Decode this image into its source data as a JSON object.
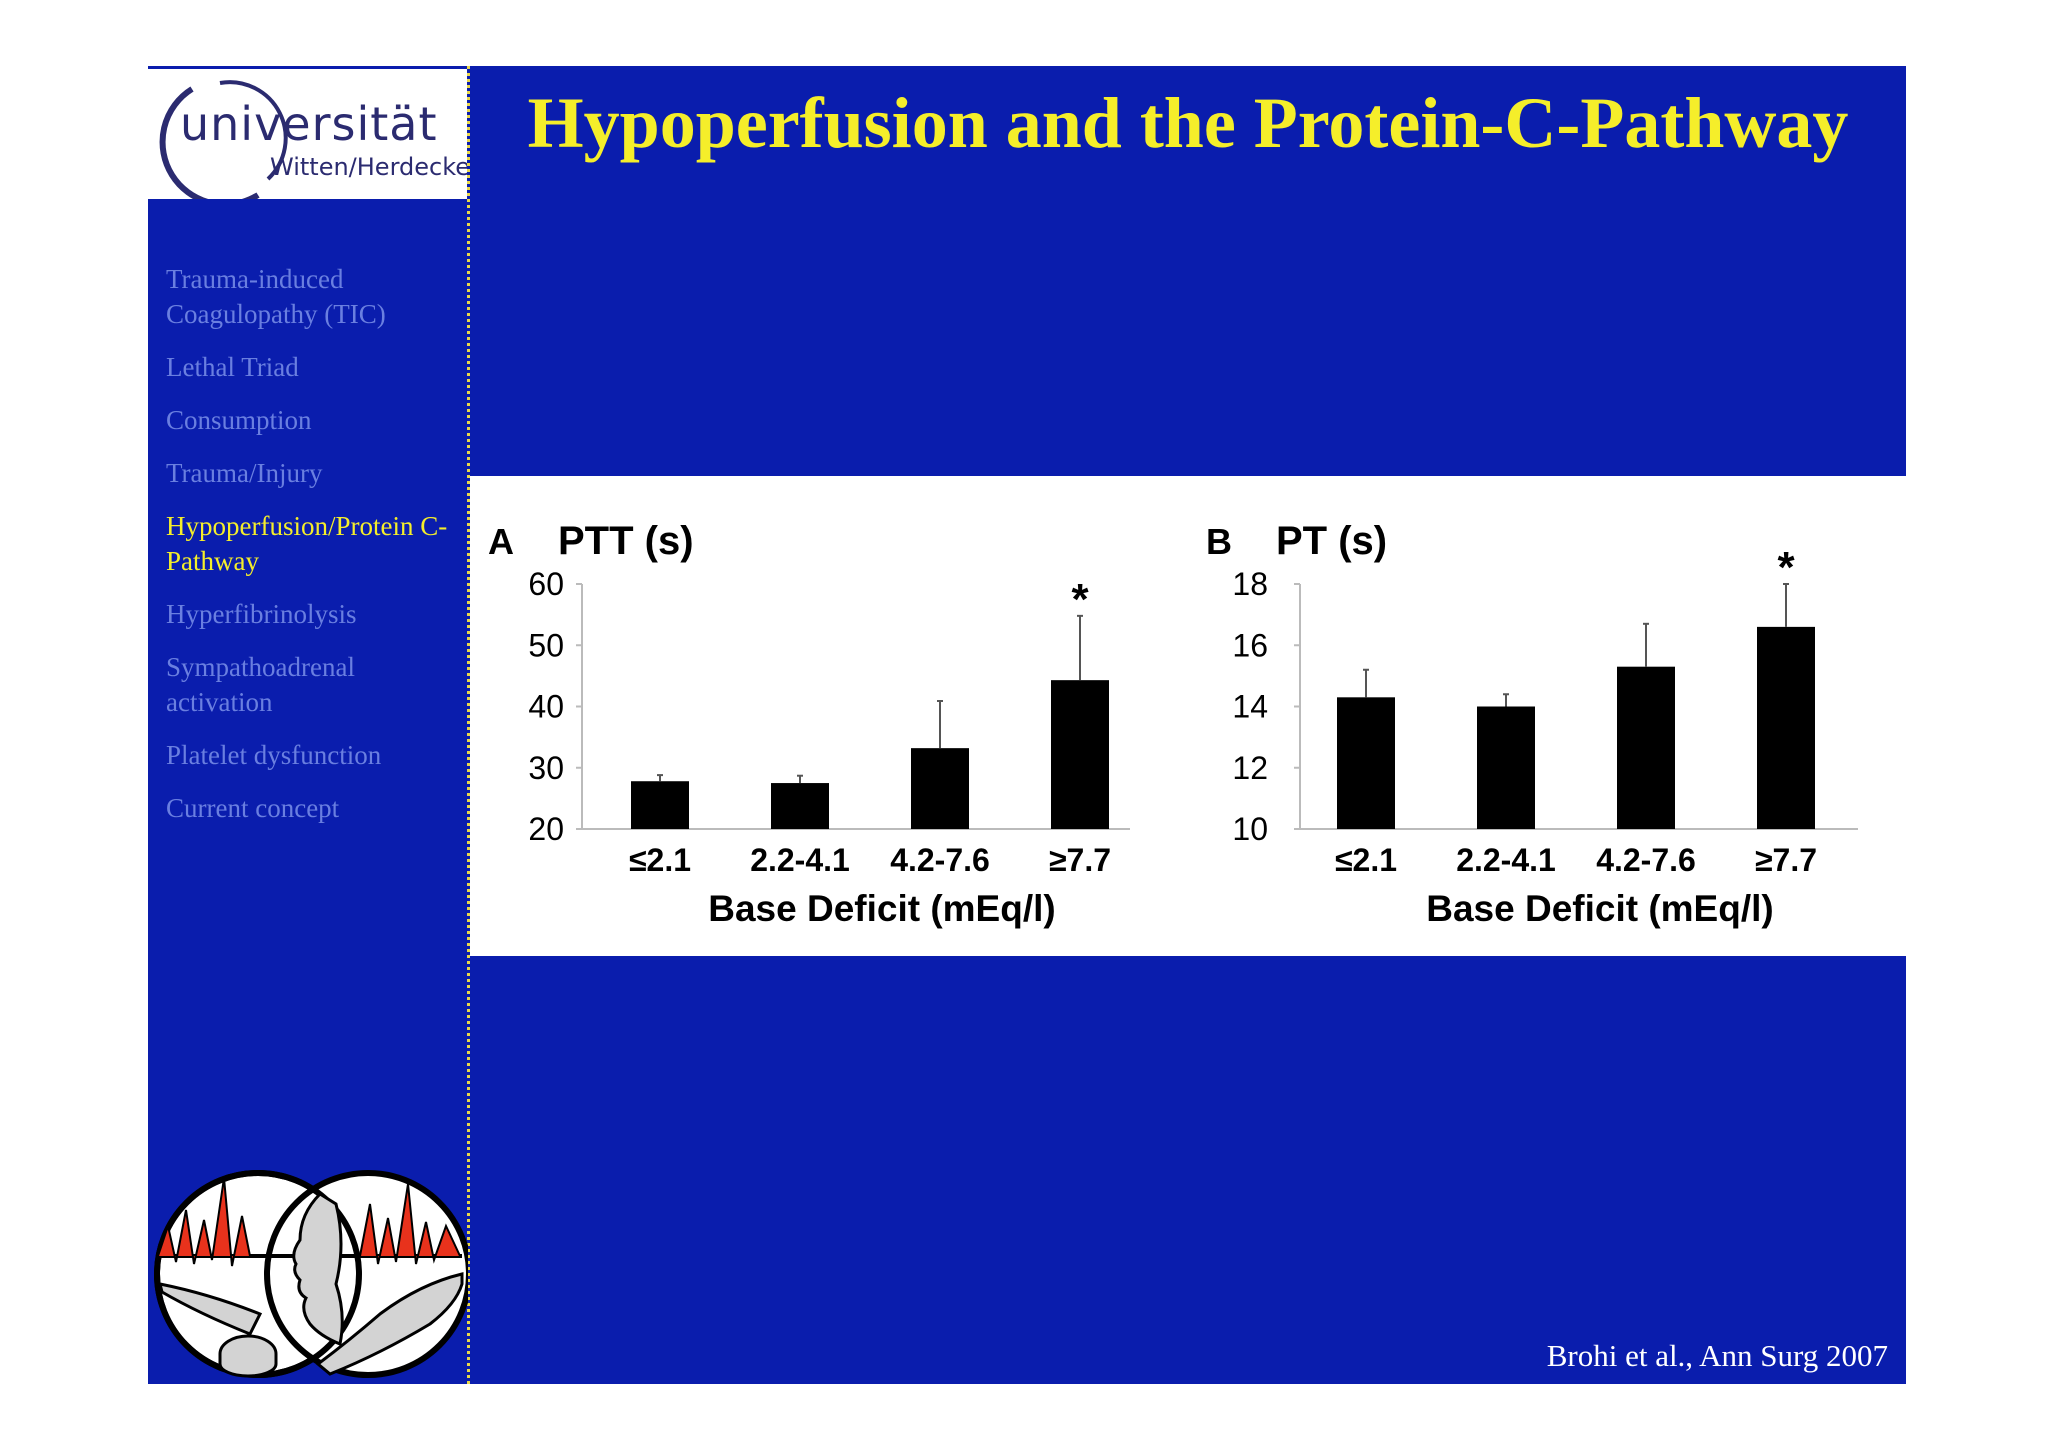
{
  "logo": {
    "brand_text": "universität",
    "subtitle": "Witten/Herdecke"
  },
  "sidebar": {
    "items": [
      {
        "label": "Trauma-induced Coagulopathy (TIC)",
        "active": false
      },
      {
        "label": "Lethal Triad",
        "active": false
      },
      {
        "label": "Consumption",
        "active": false
      },
      {
        "label": "Trauma/Injury",
        "active": false
      },
      {
        "label": "Hypoperfusion/Protein C-Pathway",
        "active": true
      },
      {
        "label": "Hyperfibrinolysis",
        "active": false
      },
      {
        "label": "Sympathoadrenal activation",
        "active": false
      },
      {
        "label": "Platelet dysfunction",
        "active": false
      },
      {
        "label": "Current concept",
        "active": false
      }
    ]
  },
  "slide": {
    "title": "Hypoperfusion and the Protein-C-Pathway",
    "citation": "Brohi et al., Ann Surg 2007"
  },
  "colors": {
    "background": "#0a1dad",
    "title": "#f5ee2a",
    "nav_inactive": "#6a7fe0",
    "nav_active": "#f5ee2a",
    "bar": "#000000"
  },
  "chart_data": [
    {
      "type": "bar",
      "panel_letter": "A",
      "title": "PTT (s)",
      "xlabel": "Base Deficit (mEq/l)",
      "ylabel": "",
      "categories": [
        "≤2.1",
        "2.2-4.1",
        "4.2-7.6",
        "≥7.7"
      ],
      "values": [
        27.8,
        27.5,
        33.2,
        44.3
      ],
      "error": [
        1.0,
        1.2,
        7.7,
        10.5
      ],
      "significance": [
        "",
        "",
        "",
        "*"
      ],
      "ylim": [
        20,
        60
      ],
      "yticks": [
        20,
        30,
        40,
        50,
        60
      ],
      "grid": false
    },
    {
      "type": "bar",
      "panel_letter": "B",
      "title": "PT (s)",
      "xlabel": "Base Deficit (mEq/l)",
      "ylabel": "",
      "categories": [
        "≤2.1",
        "2.2-4.1",
        "4.2-7.6",
        "≥7.7"
      ],
      "values": [
        14.3,
        14.0,
        15.3,
        16.6
      ],
      "error": [
        0.9,
        0.4,
        1.4,
        1.4
      ],
      "significance": [
        "",
        "",
        "",
        "*"
      ],
      "ylim": [
        10,
        18
      ],
      "yticks": [
        10,
        12,
        14,
        16,
        18
      ],
      "grid": false
    }
  ]
}
